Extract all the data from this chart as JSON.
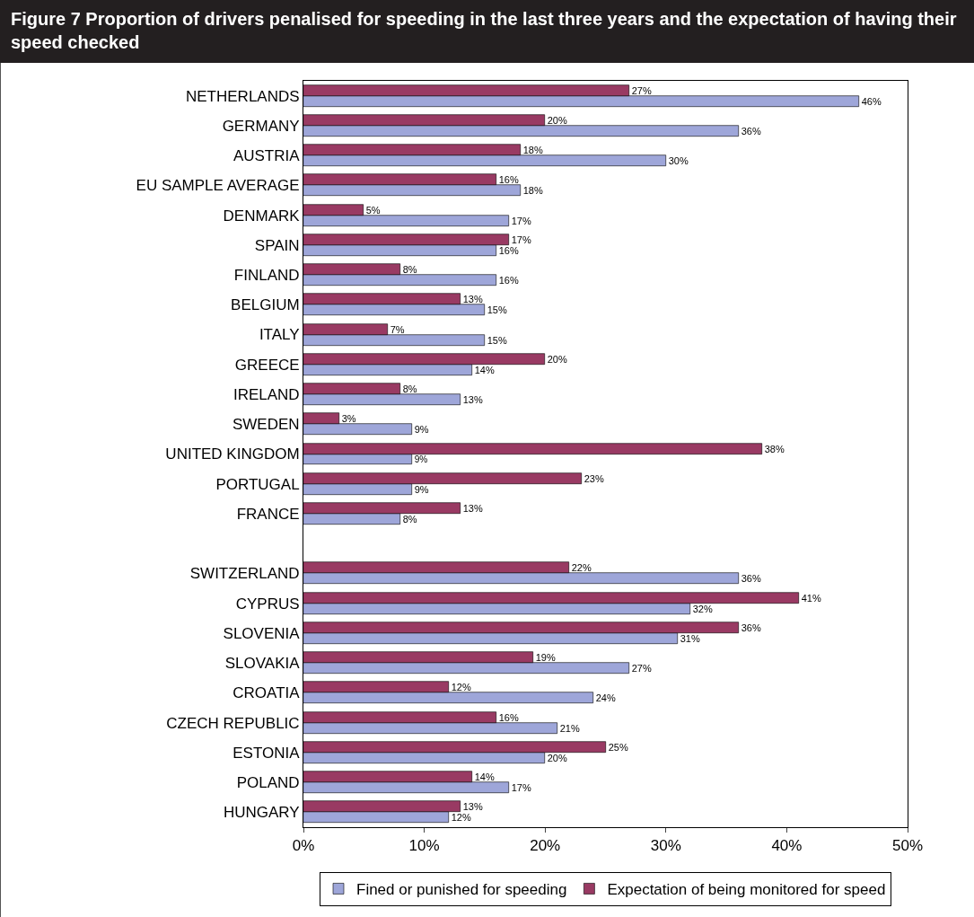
{
  "chart_data": {
    "type": "bar",
    "orientation": "horizontal",
    "title": "Figure 7 Proportion of drivers penalised for speeding in the last three years and the expectation of having their speed checked",
    "categories": [
      "NETHERLANDS",
      "GERMANY",
      "AUSTRIA",
      "EU SAMPLE AVERAGE",
      "DENMARK",
      "SPAIN",
      "FINLAND",
      "BELGIUM",
      "ITALY",
      "GREECE",
      "IRELAND",
      "SWEDEN",
      "UNITED KINGDOM",
      "PORTUGAL",
      "FRANCE",
      null,
      "SWITZERLAND",
      "CYPRUS",
      "SLOVENIA",
      "SLOVAKIA",
      "CROATIA",
      "CZECH REPUBLIC",
      "ESTONIA",
      "POLAND",
      "HUNGARY"
    ],
    "series": [
      {
        "name": "Fined or punished for speeding",
        "color": "#9ea6d9",
        "values": [
          46,
          36,
          30,
          18,
          17,
          16,
          16,
          15,
          15,
          14,
          13,
          9,
          9,
          9,
          8,
          null,
          36,
          32,
          31,
          27,
          24,
          21,
          20,
          17,
          12
        ],
        "value_labels": [
          "46%",
          "36%",
          "30%",
          "18%",
          "17%",
          "16%",
          "16%",
          "15%",
          "15%",
          "14%",
          "13%",
          "9%",
          "9%",
          "9%",
          "8%",
          null,
          "36%",
          "32%",
          "31%",
          "27%",
          "24%",
          "21%",
          "20%",
          "17%",
          "12%"
        ]
      },
      {
        "name": "Expectation of being monitored for speed",
        "color": "#993a63",
        "values": [
          27,
          20,
          18,
          16,
          5,
          17,
          8,
          13,
          7,
          20,
          8,
          3,
          38,
          23,
          13,
          null,
          22,
          41,
          36,
          19,
          12,
          16,
          25,
          14,
          13
        ],
        "value_labels": [
          "27%",
          "20%",
          "18%",
          "16%",
          "5%",
          "17%",
          "8%",
          "13%",
          "7%",
          "20%",
          "8%",
          "3%",
          "38%",
          "23%",
          "13%",
          null,
          "22%",
          "41%",
          "36%",
          "19%",
          "12%",
          "16%",
          "25%",
          "14%",
          "13%"
        ]
      }
    ],
    "xlim": [
      0,
      50
    ],
    "xticks": [
      {
        "value": 0,
        "label": "0%"
      },
      {
        "value": 10,
        "label": "10%"
      },
      {
        "value": 20,
        "label": "20%"
      },
      {
        "value": 30,
        "label": "30%"
      },
      {
        "value": 40,
        "label": "40%"
      },
      {
        "value": 50,
        "label": "50%"
      }
    ],
    "grid": false,
    "legend": "bottom"
  }
}
